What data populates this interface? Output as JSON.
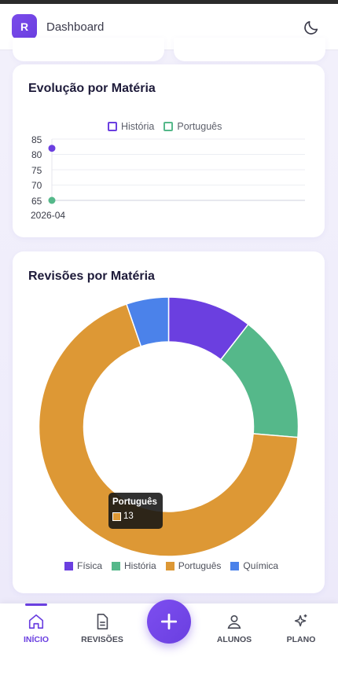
{
  "header": {
    "logo_letter": "R",
    "title": "Dashboard"
  },
  "evolution": {
    "title": "Evolução por Matéria",
    "legend": [
      {
        "name": "História",
        "color": "#6b3fe0"
      },
      {
        "name": "Português",
        "color": "#55b88a"
      }
    ],
    "y_ticks": [
      "85",
      "80",
      "75",
      "70",
      "65"
    ],
    "x_tick": "2026-04"
  },
  "revisions": {
    "title": "Revisões por Matéria",
    "legend": [
      {
        "name": "Física",
        "color": "#6b3fe0"
      },
      {
        "name": "História",
        "color": "#55b88a"
      },
      {
        "name": "Português",
        "color": "#dd9835"
      },
      {
        "name": "Química",
        "color": "#4b82ea"
      }
    ],
    "tooltip": {
      "label": "Português",
      "value": "13"
    }
  },
  "chart_data": [
    {
      "type": "line",
      "title": "Evolução por Matéria",
      "x": [
        "2026-04"
      ],
      "series": [
        {
          "name": "História",
          "values": [
            82
          ]
        },
        {
          "name": "Português",
          "values": [
            65
          ]
        }
      ],
      "ylim": [
        65,
        85
      ],
      "grid": true,
      "legend": "top"
    },
    {
      "type": "pie",
      "title": "Revisões por Matéria",
      "categories": [
        "Física",
        "História",
        "Português",
        "Química"
      ],
      "values": [
        2,
        3,
        13,
        1
      ],
      "legend": "bottom"
    }
  ],
  "nav": {
    "items": [
      {
        "label": "INÍCIO"
      },
      {
        "label": "REVISÕES"
      },
      {
        "label": "ALUNOS"
      },
      {
        "label": "PLANO"
      }
    ]
  }
}
